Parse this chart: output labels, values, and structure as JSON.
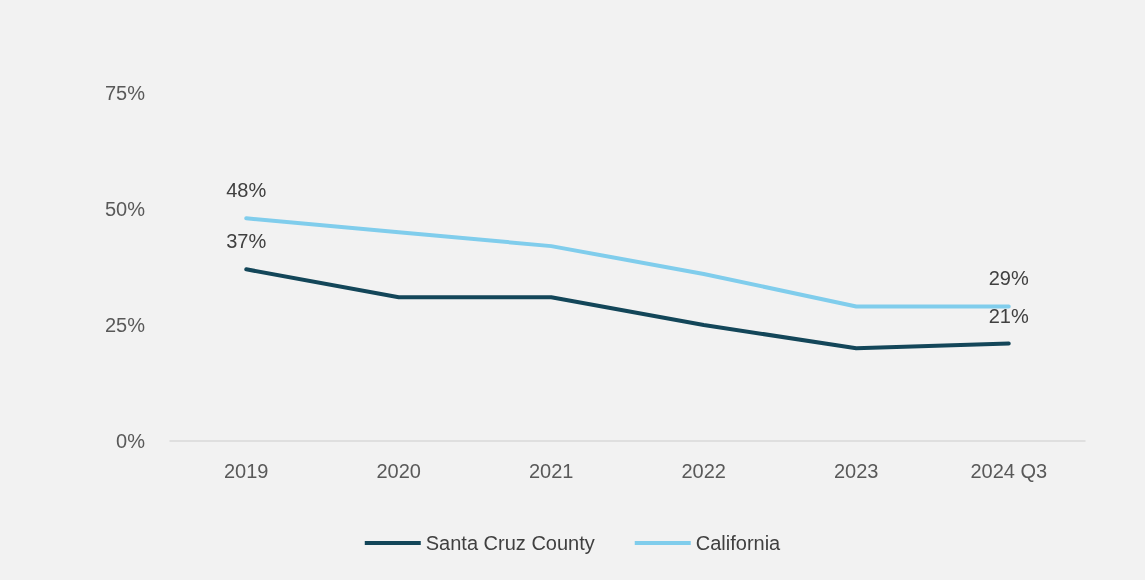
{
  "chart_data": {
    "type": "line",
    "categories": [
      "2019",
      "2020",
      "2021",
      "2022",
      "2023",
      "2024 Q3"
    ],
    "series": [
      {
        "name": "Santa Cruz County",
        "color": "#134659",
        "values": [
          37,
          31,
          31,
          25,
          20,
          21
        ],
        "value_labels": [
          "37%",
          null,
          null,
          null,
          null,
          "21%"
        ]
      },
      {
        "name": "California",
        "color": "#80cdec",
        "values": [
          48,
          45,
          42,
          36,
          29,
          29
        ],
        "value_labels": [
          "48%",
          null,
          null,
          null,
          null,
          "29%"
        ]
      }
    ],
    "ylim": [
      0,
      75
    ],
    "yticks": [
      {
        "value": 0,
        "label": "0%"
      },
      {
        "value": 25,
        "label": "25%"
      },
      {
        "value": 50,
        "label": "50%"
      },
      {
        "value": 75,
        "label": "75%"
      }
    ],
    "grid": false,
    "legend": "bottom",
    "marker": "none",
    "line_style": "solid"
  }
}
